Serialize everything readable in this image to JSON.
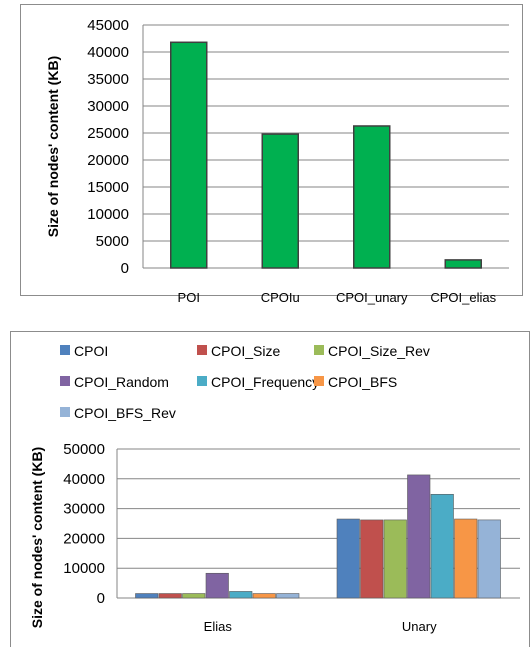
{
  "chart_data": [
    {
      "type": "bar",
      "title": "",
      "xlabel": "",
      "ylabel": "Size of nodes' content (KB)",
      "ylim": [
        0,
        45000
      ],
      "yticks": [
        0,
        5000,
        10000,
        15000,
        20000,
        25000,
        30000,
        35000,
        40000,
        45000
      ],
      "categories": [
        "POI",
        "CPOIu",
        "CPOI_unary",
        "CPOI_elias"
      ],
      "values": [
        41800,
        24800,
        26300,
        1500
      ],
      "grid": true,
      "colors": {
        "bar": "#00b050",
        "bar_border": "#3f3f3f",
        "grid": "#868686"
      }
    },
    {
      "type": "bar",
      "title": "",
      "xlabel": "",
      "ylabel": "Size of nodes' content (KB)",
      "ylim": [
        0,
        50000
      ],
      "yticks": [
        0,
        10000,
        20000,
        30000,
        40000,
        50000
      ],
      "categories": [
        "Elias",
        "Unary"
      ],
      "legend_position": "top",
      "grid": true,
      "series": [
        {
          "name": "CPOI",
          "color": "#4f81bd",
          "values": [
            1500,
            26500
          ]
        },
        {
          "name": "CPOI_Size",
          "color": "#c0504d",
          "values": [
            1500,
            26200
          ]
        },
        {
          "name": "CPOI_Size_Rev",
          "color": "#9bbb59",
          "values": [
            1500,
            26200
          ]
        },
        {
          "name": "CPOI_Random",
          "color": "#8064a2",
          "values": [
            8300,
            41300
          ]
        },
        {
          "name": "CPOI_Frequency",
          "color": "#4bacc6",
          "values": [
            2200,
            34800
          ]
        },
        {
          "name": "CPOI_BFS",
          "color": "#f79646",
          "values": [
            1500,
            26500
          ]
        },
        {
          "name": "CPOI_BFS_Rev",
          "color": "#95b3d7",
          "values": [
            1500,
            26200
          ]
        }
      ]
    }
  ]
}
